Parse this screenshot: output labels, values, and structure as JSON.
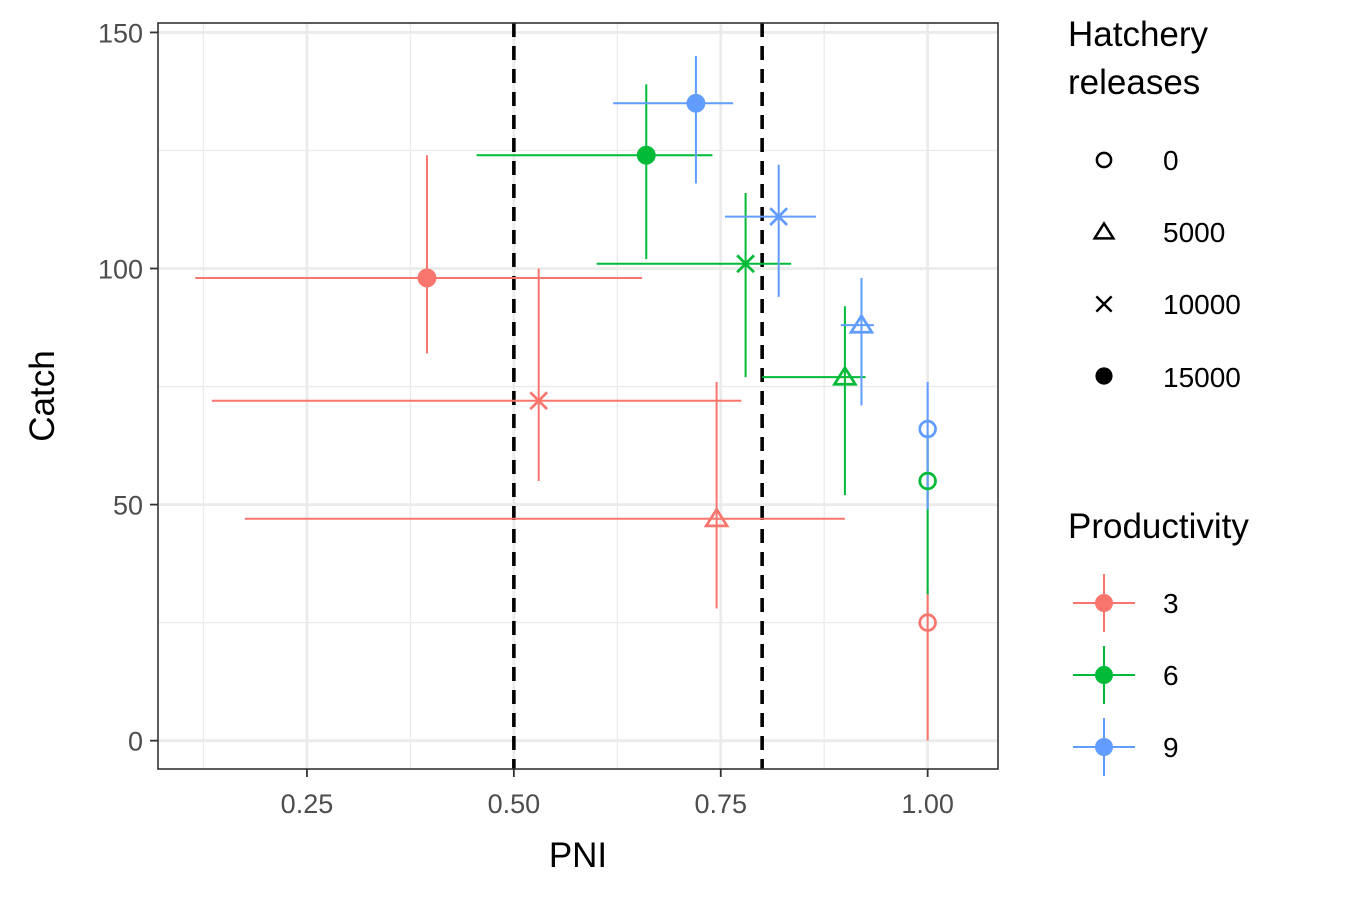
{
  "chart_data": {
    "type": "scatter",
    "title": "",
    "xlabel": "PNI",
    "ylabel": "Catch",
    "xlim": [
      0.07,
      1.085
    ],
    "ylim": [
      -6,
      152
    ],
    "x_ticks": [
      0.25,
      0.5,
      0.75,
      1.0
    ],
    "x_tick_labels": [
      "0.25",
      "0.50",
      "0.75",
      "1.00"
    ],
    "y_ticks": [
      0,
      50,
      100,
      150
    ],
    "y_tick_labels": [
      "0",
      "50",
      "100",
      "150"
    ],
    "grid": true,
    "reference_lines": {
      "orientation": "vertical",
      "style": "dashed",
      "color": "#000000",
      "x": [
        0.5,
        0.8
      ]
    },
    "legends": {
      "shape": {
        "title_lines": [
          "Hatchery",
          "releases"
        ],
        "entries": [
          {
            "label": "0",
            "shape": "circle-open"
          },
          {
            "label": "5000",
            "shape": "triangle-open"
          },
          {
            "label": "10000",
            "shape": "cross"
          },
          {
            "label": "15000",
            "shape": "circle-filled"
          }
        ]
      },
      "color": {
        "title": "Productivity",
        "entries": [
          {
            "label": "3",
            "color": "#F8766D"
          },
          {
            "label": "6",
            "color": "#00BA38"
          },
          {
            "label": "9",
            "color": "#619CFF"
          }
        ]
      }
    },
    "points": [
      {
        "productivity": "3",
        "releases": "0",
        "x": 1.0,
        "y": 25,
        "xmin": 1.0,
        "xmax": 1.0,
        "ymin": 0,
        "ymax": 32
      },
      {
        "productivity": "3",
        "releases": "5000",
        "x": 0.745,
        "y": 47,
        "xmin": 0.175,
        "xmax": 0.9,
        "ymin": 28,
        "ymax": 76
      },
      {
        "productivity": "3",
        "releases": "10000",
        "x": 0.53,
        "y": 72,
        "xmin": 0.135,
        "xmax": 0.775,
        "ymin": 55,
        "ymax": 100
      },
      {
        "productivity": "3",
        "releases": "15000",
        "x": 0.395,
        "y": 98,
        "xmin": 0.115,
        "xmax": 0.655,
        "ymin": 82,
        "ymax": 124
      },
      {
        "productivity": "6",
        "releases": "0",
        "x": 1.0,
        "y": 55,
        "xmin": 1.0,
        "xmax": 1.0,
        "ymin": 31,
        "ymax": 65
      },
      {
        "productivity": "6",
        "releases": "5000",
        "x": 0.9,
        "y": 77,
        "xmin": 0.8,
        "xmax": 0.925,
        "ymin": 52,
        "ymax": 92
      },
      {
        "productivity": "6",
        "releases": "10000",
        "x": 0.78,
        "y": 101,
        "xmin": 0.6,
        "xmax": 0.835,
        "ymin": 77,
        "ymax": 116
      },
      {
        "productivity": "6",
        "releases": "15000",
        "x": 0.66,
        "y": 124,
        "xmin": 0.455,
        "xmax": 0.74,
        "ymin": 102,
        "ymax": 139
      },
      {
        "productivity": "9",
        "releases": "0",
        "x": 1.0,
        "y": 66,
        "xmin": 1.0,
        "xmax": 1.0,
        "ymin": 49,
        "ymax": 76
      },
      {
        "productivity": "9",
        "releases": "5000",
        "x": 0.92,
        "y": 88,
        "xmin": 0.895,
        "xmax": 0.935,
        "ymin": 71,
        "ymax": 98
      },
      {
        "productivity": "9",
        "releases": "10000",
        "x": 0.82,
        "y": 111,
        "xmin": 0.755,
        "xmax": 0.865,
        "ymin": 94,
        "ymax": 122
      },
      {
        "productivity": "9",
        "releases": "15000",
        "x": 0.72,
        "y": 135,
        "xmin": 0.62,
        "xmax": 0.765,
        "ymin": 118,
        "ymax": 145
      }
    ]
  }
}
